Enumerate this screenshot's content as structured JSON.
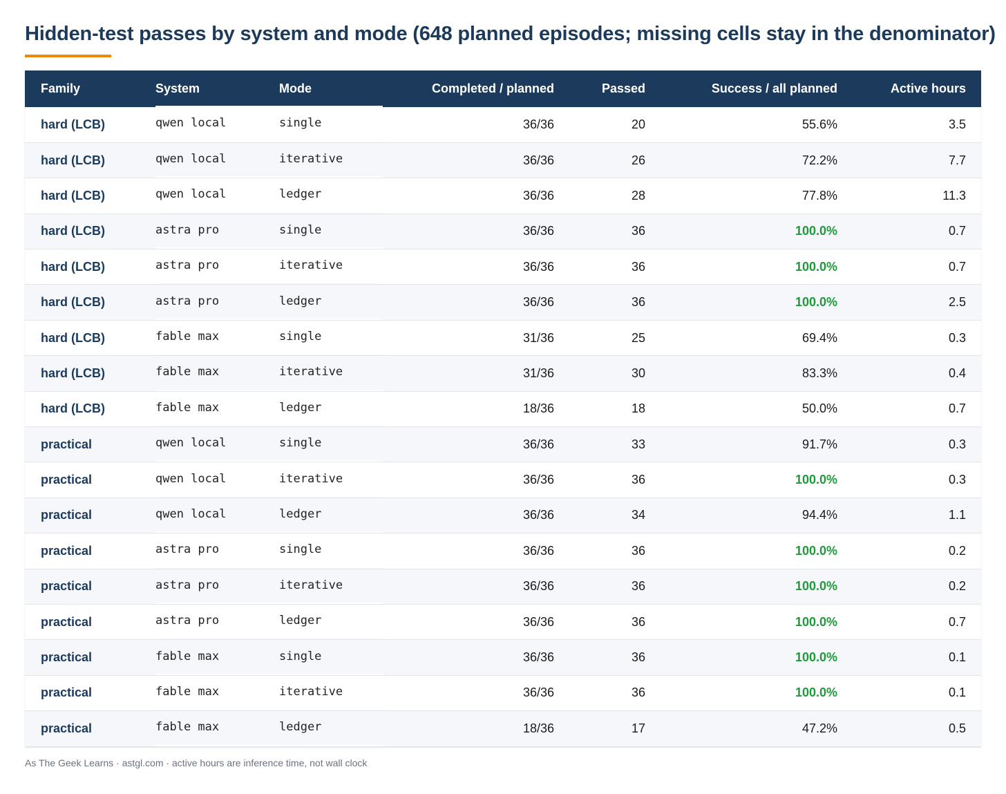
{
  "title": "Hidden-test passes by system and mode (648 planned episodes; missing cells stay in the denominator)",
  "accent_color": "#e8890c",
  "header_color": "#1b3a5c",
  "full_success_color": "#1e9a3a",
  "columns": [
    "Family",
    "System",
    "Mode",
    "Completed / planned",
    "Passed",
    "Success / all planned",
    "Active hours"
  ],
  "rows": [
    {
      "family": "hard (LCB)",
      "system": "qwen local",
      "mode": "single",
      "completed": "36/36",
      "passed": "20",
      "success": "55.6%",
      "hours": "3.5"
    },
    {
      "family": "hard (LCB)",
      "system": "qwen local",
      "mode": "iterative",
      "completed": "36/36",
      "passed": "26",
      "success": "72.2%",
      "hours": "7.7"
    },
    {
      "family": "hard (LCB)",
      "system": "qwen local",
      "mode": "ledger",
      "completed": "36/36",
      "passed": "28",
      "success": "77.8%",
      "hours": "11.3"
    },
    {
      "family": "hard (LCB)",
      "system": "astra pro",
      "mode": "single",
      "completed": "36/36",
      "passed": "36",
      "success": "100.0%",
      "hours": "0.7"
    },
    {
      "family": "hard (LCB)",
      "system": "astra pro",
      "mode": "iterative",
      "completed": "36/36",
      "passed": "36",
      "success": "100.0%",
      "hours": "0.7"
    },
    {
      "family": "hard (LCB)",
      "system": "astra pro",
      "mode": "ledger",
      "completed": "36/36",
      "passed": "36",
      "success": "100.0%",
      "hours": "2.5"
    },
    {
      "family": "hard (LCB)",
      "system": "fable max",
      "mode": "single",
      "completed": "31/36",
      "passed": "25",
      "success": "69.4%",
      "hours": "0.3"
    },
    {
      "family": "hard (LCB)",
      "system": "fable max",
      "mode": "iterative",
      "completed": "31/36",
      "passed": "30",
      "success": "83.3%",
      "hours": "0.4"
    },
    {
      "family": "hard (LCB)",
      "system": "fable max",
      "mode": "ledger",
      "completed": "18/36",
      "passed": "18",
      "success": "50.0%",
      "hours": "0.7"
    },
    {
      "family": "practical",
      "system": "qwen local",
      "mode": "single",
      "completed": "36/36",
      "passed": "33",
      "success": "91.7%",
      "hours": "0.3"
    },
    {
      "family": "practical",
      "system": "qwen local",
      "mode": "iterative",
      "completed": "36/36",
      "passed": "36",
      "success": "100.0%",
      "hours": "0.3"
    },
    {
      "family": "practical",
      "system": "qwen local",
      "mode": "ledger",
      "completed": "36/36",
      "passed": "34",
      "success": "94.4%",
      "hours": "1.1"
    },
    {
      "family": "practical",
      "system": "astra pro",
      "mode": "single",
      "completed": "36/36",
      "passed": "36",
      "success": "100.0%",
      "hours": "0.2"
    },
    {
      "family": "practical",
      "system": "astra pro",
      "mode": "iterative",
      "completed": "36/36",
      "passed": "36",
      "success": "100.0%",
      "hours": "0.2"
    },
    {
      "family": "practical",
      "system": "astra pro",
      "mode": "ledger",
      "completed": "36/36",
      "passed": "36",
      "success": "100.0%",
      "hours": "0.7"
    },
    {
      "family": "practical",
      "system": "fable max",
      "mode": "single",
      "completed": "36/36",
      "passed": "36",
      "success": "100.0%",
      "hours": "0.1"
    },
    {
      "family": "practical",
      "system": "fable max",
      "mode": "iterative",
      "completed": "36/36",
      "passed": "36",
      "success": "100.0%",
      "hours": "0.1"
    },
    {
      "family": "practical",
      "system": "fable max",
      "mode": "ledger",
      "completed": "18/36",
      "passed": "17",
      "success": "47.2%",
      "hours": "0.5"
    }
  ],
  "footer": "As The Geek Learns · astgl.com · active hours are inference time, not wall clock"
}
